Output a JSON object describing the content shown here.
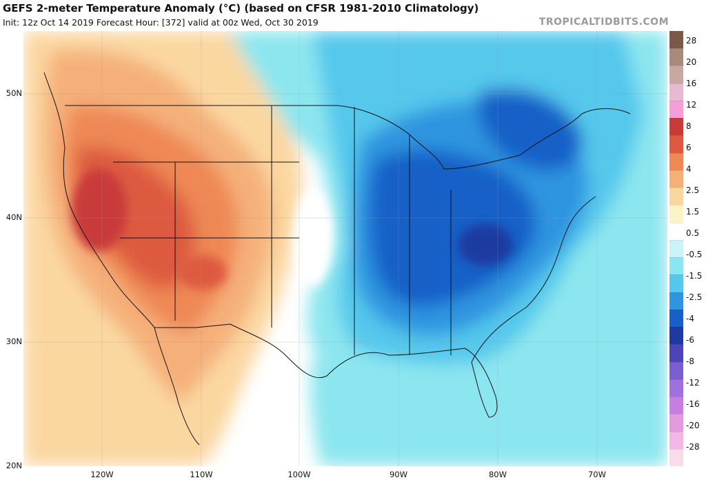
{
  "title": "GEFS 2-meter Temperature Anomaly (°C) (based on CFSR 1981-2010 Climatology)",
  "subtitle": "Init: 12z Oct 14 2019   Forecast Hour: [372]   valid at 00z Wed, Oct 30 2019",
  "site": "TROPICALTIDBITS.COM",
  "lat_labels": [
    "50N",
    "40N",
    "30N",
    "20N"
  ],
  "lon_labels": [
    "120W",
    "110W",
    "100W",
    "90W",
    "80W",
    "70W"
  ],
  "colorbar": {
    "labels": [
      "28",
      "20",
      "16",
      "12",
      "8",
      "6",
      "4",
      "2.5",
      "1.5",
      "0.5",
      "-0.5",
      "-1.5",
      "-2.5",
      "-4",
      "-6",
      "-8",
      "-12",
      "-16",
      "-20",
      "-28"
    ],
    "colors": [
      "#7a5a46",
      "#a98a7a",
      "#c8a8a0",
      "#e7b9d2",
      "#f59fd6",
      "#c93a3a",
      "#dd5a40",
      "#ef8855",
      "#f5b07a",
      "#fbd7a0",
      "#fdf3c8",
      "#ffffff",
      "#c9f3f6",
      "#8ce6ef",
      "#55c8ec",
      "#2f95e0",
      "#1860c8",
      "#1c3aa0",
      "#4e43b8",
      "#7a5ed0",
      "#a070e0",
      "#c77ee0",
      "#e49adf",
      "#f4b6e4",
      "#f8dcea"
    ]
  },
  "map_colors": {
    "ocean_cool": "#8ce6ef",
    "warm_anomaly": "#dd5a40",
    "cold_anomaly": "#1860c8"
  }
}
